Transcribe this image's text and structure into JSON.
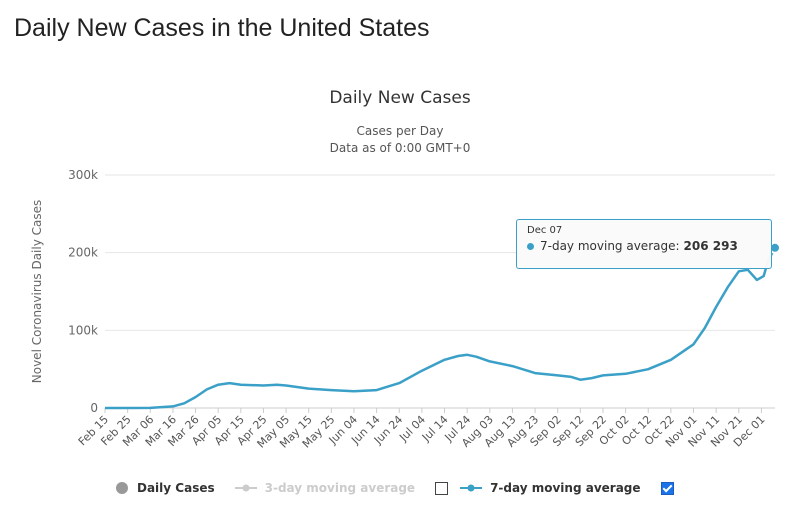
{
  "page_title": "Daily New Cases in the United States",
  "chart_data": {
    "type": "line",
    "title": "Daily New Cases",
    "subtitles": [
      "Cases per Day",
      "Data as of 0:00 GMT+0"
    ],
    "ylabel": "Novel Coronavirus Daily Cases",
    "ylim": [
      0,
      300000
    ],
    "y_ticks": [
      0,
      100000,
      200000,
      300000
    ],
    "y_tick_labels": [
      "0",
      "100k",
      "200k",
      "300k"
    ],
    "x_start": "Feb 15",
    "x_end": "Dec 07",
    "x_tick_labels": [
      "Feb 15",
      "Feb 25",
      "Mar 06",
      "Mar 16",
      "Mar 26",
      "Apr 05",
      "Apr 15",
      "Apr 25",
      "May 05",
      "May 15",
      "May 25",
      "Jun 04",
      "Jun 14",
      "Jun 24",
      "Jul 04",
      "Jul 14",
      "Jul 24",
      "Aug 03",
      "Aug 13",
      "Aug 23",
      "Sep 02",
      "Sep 12",
      "Sep 22",
      "Oct 02",
      "Oct 12",
      "Oct 22",
      "Nov 01",
      "Nov 11",
      "Nov 21",
      "Dec 01"
    ],
    "series": [
      {
        "name": "7-day moving average",
        "color": "#3aa0c8",
        "visible": true,
        "points": [
          [
            "Feb 15",
            0
          ],
          [
            "Mar 06",
            100
          ],
          [
            "Mar 16",
            2000
          ],
          [
            "Mar 21",
            6000
          ],
          [
            "Mar 26",
            14000
          ],
          [
            "Mar 31",
            24000
          ],
          [
            "Apr 05",
            30000
          ],
          [
            "Apr 10",
            32000
          ],
          [
            "Apr 15",
            30000
          ],
          [
            "Apr 25",
            29000
          ],
          [
            "May 01",
            30000
          ],
          [
            "May 05",
            29000
          ],
          [
            "May 15",
            25000
          ],
          [
            "May 25",
            23000
          ],
          [
            "Jun 04",
            21500
          ],
          [
            "Jun 14",
            23000
          ],
          [
            "Jun 24",
            32000
          ],
          [
            "Jul 04",
            48000
          ],
          [
            "Jul 14",
            62000
          ],
          [
            "Jul 20",
            67000
          ],
          [
            "Jul 24",
            68500
          ],
          [
            "Jul 28",
            66000
          ],
          [
            "Aug 03",
            60000
          ],
          [
            "Aug 13",
            54000
          ],
          [
            "Aug 23",
            45000
          ],
          [
            "Sep 02",
            42000
          ],
          [
            "Sep 08",
            40000
          ],
          [
            "Sep 12",
            36500
          ],
          [
            "Sep 17",
            38500
          ],
          [
            "Sep 22",
            42000
          ],
          [
            "Oct 02",
            44000
          ],
          [
            "Oct 12",
            50000
          ],
          [
            "Oct 22",
            62000
          ],
          [
            "Nov 01",
            82000
          ],
          [
            "Nov 06",
            103000
          ],
          [
            "Nov 11",
            130000
          ],
          [
            "Nov 16",
            155000
          ],
          [
            "Nov 21",
            176000
          ],
          [
            "Nov 25",
            178000
          ],
          [
            "Nov 29",
            165000
          ],
          [
            "Dec 02",
            170000
          ],
          [
            "Dec 04",
            190000
          ],
          [
            "Dec 07",
            206293
          ]
        ]
      },
      {
        "name": "Daily Cases",
        "color": "#bbbbbb",
        "visible": false
      },
      {
        "name": "3-day moving average",
        "color": "#cccccc",
        "visible": false
      }
    ],
    "legend_position": "bottom",
    "grid": true
  },
  "legend": {
    "daily_cases_label": "Daily Cases",
    "three_day_label": "3-day moving average",
    "seven_day_label": "7-day moving average",
    "three_day_checked": false,
    "seven_day_checked": true
  },
  "tooltip": {
    "date": "Dec 07",
    "series_label": "7-day moving average:",
    "value": "206 293"
  }
}
